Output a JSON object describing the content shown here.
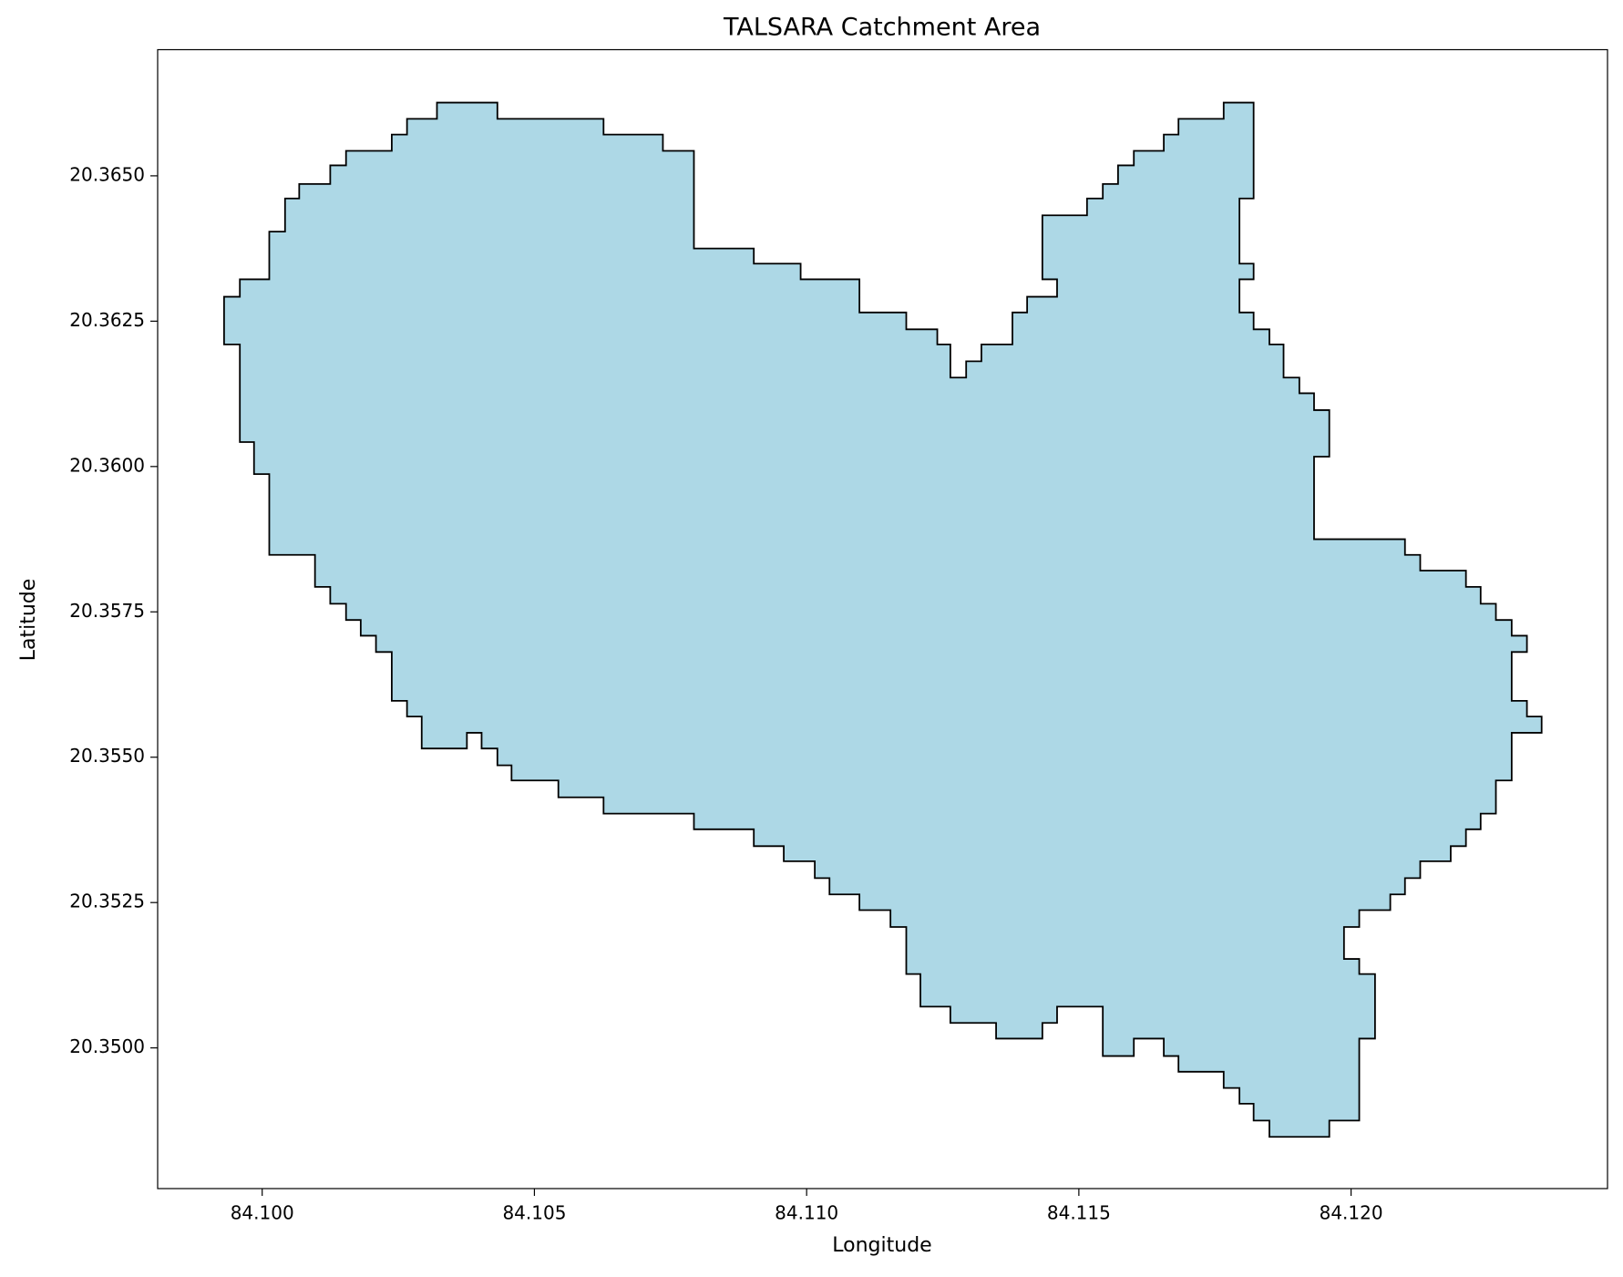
{
  "chart_data": {
    "type": "polygon",
    "title": "TALSARA Catchment Area",
    "xlabel": "Longitude",
    "ylabel": "Latitude",
    "color": "#add8e6",
    "edgecolor": "#000000",
    "grid": false,
    "xlim": [
      84.09808,
      84.12471
    ],
    "ylim": [
      20.34758,
      20.36717
    ],
    "xticks": [
      {
        "value": 84.1,
        "label": "84.100"
      },
      {
        "value": 84.105,
        "label": "84.105"
      },
      {
        "value": 84.11,
        "label": "84.110"
      },
      {
        "value": 84.115,
        "label": "84.115"
      },
      {
        "value": 84.12,
        "label": "84.120"
      }
    ],
    "yticks": [
      {
        "value": 20.35,
        "label": "20.3500"
      },
      20.3525,
      {
        "value": 20.355,
        "label": "20.3550"
      },
      20.3575,
      {
        "value": 20.36,
        "label": "20.3600"
      },
      20.3625,
      {
        "value": 20.365,
        "label": "20.3650"
      }
    ],
    "x": [
      84.0993,
      84.09959,
      84.09959,
      84.10013,
      84.10013,
      84.10042,
      84.10042,
      84.10068,
      84.10068,
      84.10125,
      84.10125,
      84.10154,
      84.10154,
      84.10238,
      84.10238,
      84.10266,
      84.10266,
      84.10321,
      84.10321,
      84.10432,
      84.10432,
      84.10627,
      84.10627,
      84.10736,
      84.10736,
      84.10793,
      84.10793,
      84.10903,
      84.10903,
      84.10989,
      84.10989,
      84.11097,
      84.11097,
      84.11183,
      84.11183,
      84.1124,
      84.1124,
      84.11264,
      84.11264,
      84.11293,
      84.11293,
      84.11321,
      84.11321,
      84.11378,
      84.11378,
      84.11405,
      84.11405,
      84.1146,
      84.1146,
      84.11433,
      84.11433,
      84.11515,
      84.11515,
      84.11544,
      84.11544,
      84.11572,
      84.11572,
      84.11601,
      84.11601,
      84.11656,
      84.11656,
      84.11683,
      84.11683,
      84.11766,
      84.11766,
      84.11821,
      84.11821,
      84.11795,
      84.11795,
      84.11821,
      84.11821,
      84.11795,
      84.11795,
      84.11821,
      84.11821,
      84.1185,
      84.1185,
      84.11876,
      84.11876,
      84.11905,
      84.11905,
      84.11932,
      84.11932,
      84.1196,
      84.1196,
      84.11932,
      84.11932,
      84.12099,
      84.12099,
      84.12127,
      84.12127,
      84.12211,
      84.12211,
      84.12238,
      84.12238,
      84.12266,
      84.12266,
      84.12295,
      84.12295,
      84.12323,
      84.12323,
      84.12295,
      84.12295,
      84.12323,
      84.12323,
      84.1235,
      84.1235,
      84.12295,
      84.12295,
      84.12266,
      84.12266,
      84.12238,
      84.12238,
      84.12211,
      84.12211,
      84.12183,
      84.12183,
      84.12127,
      84.12127,
      84.12099,
      84.12099,
      84.12072,
      84.12072,
      84.12015,
      84.12015,
      84.11987,
      84.11987,
      84.12015,
      84.12015,
      84.12044,
      84.12044,
      84.12015,
      84.12015,
      84.1196,
      84.1196,
      84.1185,
      84.1185,
      84.11821,
      84.11821,
      84.11795,
      84.11795,
      84.11766,
      84.11766,
      84.11683,
      84.11683,
      84.11656,
      84.11656,
      84.11601,
      84.11601,
      84.11544,
      84.11544,
      84.1146,
      84.1146,
      84.11433,
      84.11433,
      84.11348,
      84.11348,
      84.11264,
      84.11264,
      84.11209,
      84.11209,
      84.11183,
      84.11183,
      84.11154,
      84.11154,
      84.11097,
      84.11097,
      84.11042,
      84.11042,
      84.11015,
      84.11015,
      84.10958,
      84.10958,
      84.10903,
      84.10903,
      84.10793,
      84.10793,
      84.10627,
      84.10627,
      84.10544,
      84.10544,
      84.10458,
      84.10458,
      84.10432,
      84.10432,
      84.10403,
      84.10403,
      84.10376,
      84.10376,
      84.10293,
      84.10293,
      84.10266,
      84.10266,
      84.10238,
      84.10238,
      84.10209,
      84.10209,
      84.10181,
      84.10181,
      84.10154,
      84.10154,
      84.10125,
      84.10125,
      84.10097,
      84.10097,
      84.10013,
      84.10013,
      84.09985,
      84.09985,
      84.09959,
      84.09959,
      84.0993
    ],
    "y": [
      20.36292,
      20.36292,
      20.36322,
      20.36322,
      20.36404,
      20.36404,
      20.36461,
      20.36461,
      20.36486,
      20.36486,
      20.36518,
      20.36518,
      20.36543,
      20.36543,
      20.36571,
      20.36571,
      20.36598,
      20.36598,
      20.36626,
      20.36626,
      20.36598,
      20.36598,
      20.36571,
      20.36571,
      20.36543,
      20.36543,
      20.36375,
      20.36375,
      20.36349,
      20.36349,
      20.36322,
      20.36322,
      20.36265,
      20.36265,
      20.36236,
      20.36236,
      20.3621,
      20.3621,
      20.36153,
      20.36153,
      20.36181,
      20.36181,
      20.3621,
      20.3621,
      20.36265,
      20.36265,
      20.36292,
      20.36292,
      20.36322,
      20.36322,
      20.36432,
      20.36432,
      20.36461,
      20.36461,
      20.36486,
      20.36486,
      20.36518,
      20.36518,
      20.36543,
      20.36543,
      20.36571,
      20.36571,
      20.36598,
      20.36598,
      20.36626,
      20.36626,
      20.36461,
      20.36461,
      20.36349,
      20.36349,
      20.36322,
      20.36322,
      20.36265,
      20.36265,
      20.36236,
      20.36236,
      20.3621,
      20.3621,
      20.36153,
      20.36153,
      20.36126,
      20.36126,
      20.36097,
      20.36097,
      20.36017,
      20.36017,
      20.35875,
      20.35875,
      20.35848,
      20.35848,
      20.35821,
      20.35821,
      20.35793,
      20.35793,
      20.35764,
      20.35764,
      20.35736,
      20.35736,
      20.35709,
      20.35709,
      20.35681,
      20.35681,
      20.35597,
      20.35597,
      20.3557,
      20.3557,
      20.35542,
      20.35542,
      20.3546,
      20.3546,
      20.35403,
      20.35403,
      20.35376,
      20.35376,
      20.35347,
      20.35347,
      20.35321,
      20.35321,
      20.35292,
      20.35292,
      20.35264,
      20.35264,
      20.35237,
      20.35237,
      20.35208,
      20.35208,
      20.35153,
      20.35153,
      20.35127,
      20.35127,
      20.35016,
      20.35016,
      20.34875,
      20.34875,
      20.34847,
      20.34847,
      20.34875,
      20.34875,
      20.34904,
      20.34904,
      20.34931,
      20.34931,
      20.34959,
      20.34959,
      20.34986,
      20.34986,
      20.35016,
      20.35016,
      20.34986,
      20.34986,
      20.35071,
      20.35071,
      20.35043,
      20.35043,
      20.35016,
      20.35016,
      20.35043,
      20.35043,
      20.35071,
      20.35071,
      20.35127,
      20.35127,
      20.35208,
      20.35208,
      20.35237,
      20.35237,
      20.35264,
      20.35264,
      20.35292,
      20.35292,
      20.35321,
      20.35321,
      20.35347,
      20.35347,
      20.35376,
      20.35376,
      20.35403,
      20.35403,
      20.35431,
      20.35431,
      20.3546,
      20.3546,
      20.35486,
      20.35486,
      20.35515,
      20.35515,
      20.35542,
      20.35542,
      20.35515,
      20.35515,
      20.3557,
      20.3557,
      20.35597,
      20.35597,
      20.35681,
      20.35681,
      20.35709,
      20.35709,
      20.35736,
      20.35736,
      20.35764,
      20.35764,
      20.35793,
      20.35793,
      20.35848,
      20.35848,
      20.35987,
      20.35987,
      20.36042,
      20.36042,
      20.3621,
      20.3621
    ]
  }
}
